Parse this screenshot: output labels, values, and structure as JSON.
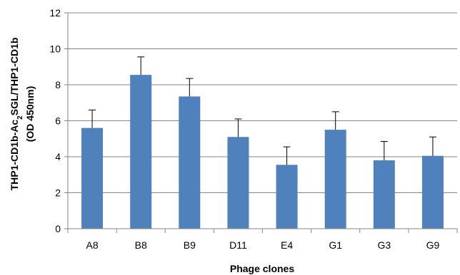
{
  "chart_data": {
    "type": "bar",
    "title": "",
    "xlabel": "Phage clones",
    "ylabel": {
      "prefix": "THP1-CD1b-Ac",
      "subscript": "2",
      "suffix": "SGL/THP1-CD1b",
      "line2": "(OD 450nm)"
    },
    "categories": [
      "A8",
      "B8",
      "B9",
      "D11",
      "E4",
      "G1",
      "G3",
      "G9"
    ],
    "values": [
      5.6,
      8.55,
      7.35,
      5.1,
      3.55,
      5.5,
      3.8,
      4.05
    ],
    "error_plus": [
      1.0,
      1.0,
      1.0,
      1.0,
      1.0,
      1.0,
      1.05,
      1.05
    ],
    "ylim": [
      0,
      12
    ],
    "yticks": [
      0,
      2,
      4,
      6,
      8,
      10,
      12
    ],
    "grid": true,
    "bar_color": "#4f81bd",
    "grid_color": "#868686"
  }
}
